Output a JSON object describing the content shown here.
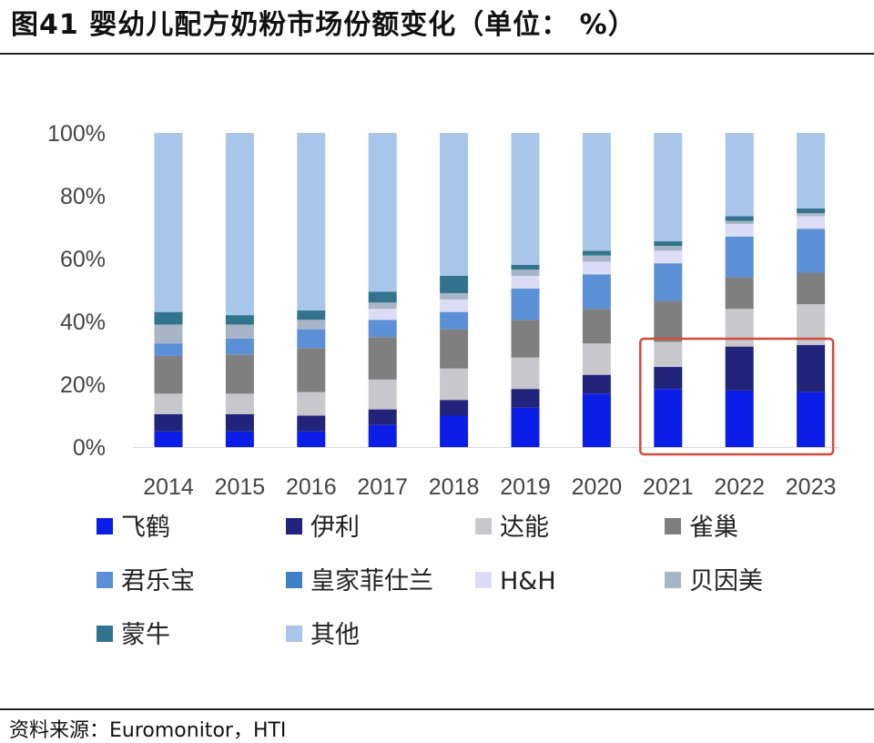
{
  "figure": {
    "title": "图41 婴幼儿配方奶粉市场份额变化（单位： %）",
    "source": "资料来源：Euromonitor，HTI"
  },
  "chart_data": {
    "type": "bar",
    "stacked": true,
    "title": "婴幼儿配方奶粉市场份额变化（单位： %）",
    "xlabel": "",
    "ylabel": "",
    "ylim": [
      0,
      100
    ],
    "y_ticks": [
      "0%",
      "20%",
      "40%",
      "60%",
      "80%",
      "100%"
    ],
    "categories": [
      "2014",
      "2015",
      "2016",
      "2017",
      "2018",
      "2019",
      "2020",
      "2021",
      "2022",
      "2023"
    ],
    "series": [
      {
        "name": "飞鹤",
        "color": "#0a1ee8",
        "values": [
          5,
          5,
          5,
          7,
          10,
          12.5,
          17,
          18.5,
          18,
          17.5
        ]
      },
      {
        "name": "伊利",
        "color": "#22237a",
        "values": [
          5.5,
          5.5,
          5,
          5,
          5,
          6,
          6,
          7,
          14,
          15
        ]
      },
      {
        "name": "达能",
        "color": "#c8c8cc",
        "values": [
          6.5,
          6.5,
          7.5,
          9.5,
          10,
          10,
          10,
          8,
          12,
          13
        ]
      },
      {
        "name": "雀巢",
        "color": "#7f7f7f",
        "values": [
          12,
          12.5,
          14,
          13.5,
          12.5,
          12,
          11,
          13,
          10,
          10
        ]
      },
      {
        "name": "君乐宝",
        "color": "#5b8fd6",
        "values": [
          4,
          5,
          6,
          5.5,
          5.5,
          10,
          11,
          12,
          13,
          14
        ]
      },
      {
        "name": "皇家菲仕兰",
        "color": "#3f7fc6",
        "values": [
          0,
          0,
          0,
          0,
          0,
          0,
          0,
          0,
          0,
          0
        ]
      },
      {
        "name": "H&H",
        "color": "#dcdcf7",
        "values": [
          0,
          0,
          0,
          3.5,
          4,
          4,
          4,
          4,
          4,
          4
        ]
      },
      {
        "name": "贝因美",
        "color": "#a8b5c6",
        "values": [
          6,
          4.5,
          3,
          2,
          2,
          2,
          2,
          1.5,
          1,
          1
        ]
      },
      {
        "name": "蒙牛",
        "color": "#32748e",
        "values": [
          4,
          3,
          3,
          3.5,
          5.5,
          1.5,
          1.5,
          1.5,
          1.5,
          1.5
        ]
      },
      {
        "name": "其他",
        "color": "#a8c5ea",
        "values": [
          57,
          58,
          56.5,
          50.5,
          45.5,
          42,
          37.5,
          34.5,
          26.5,
          24
        ]
      }
    ],
    "annotation": {
      "type": "highlight-box",
      "categories": [
        "2021",
        "2022",
        "2023"
      ],
      "color": "#d24a3a"
    },
    "legend": {
      "position": "bottom",
      "columns": 4
    }
  }
}
